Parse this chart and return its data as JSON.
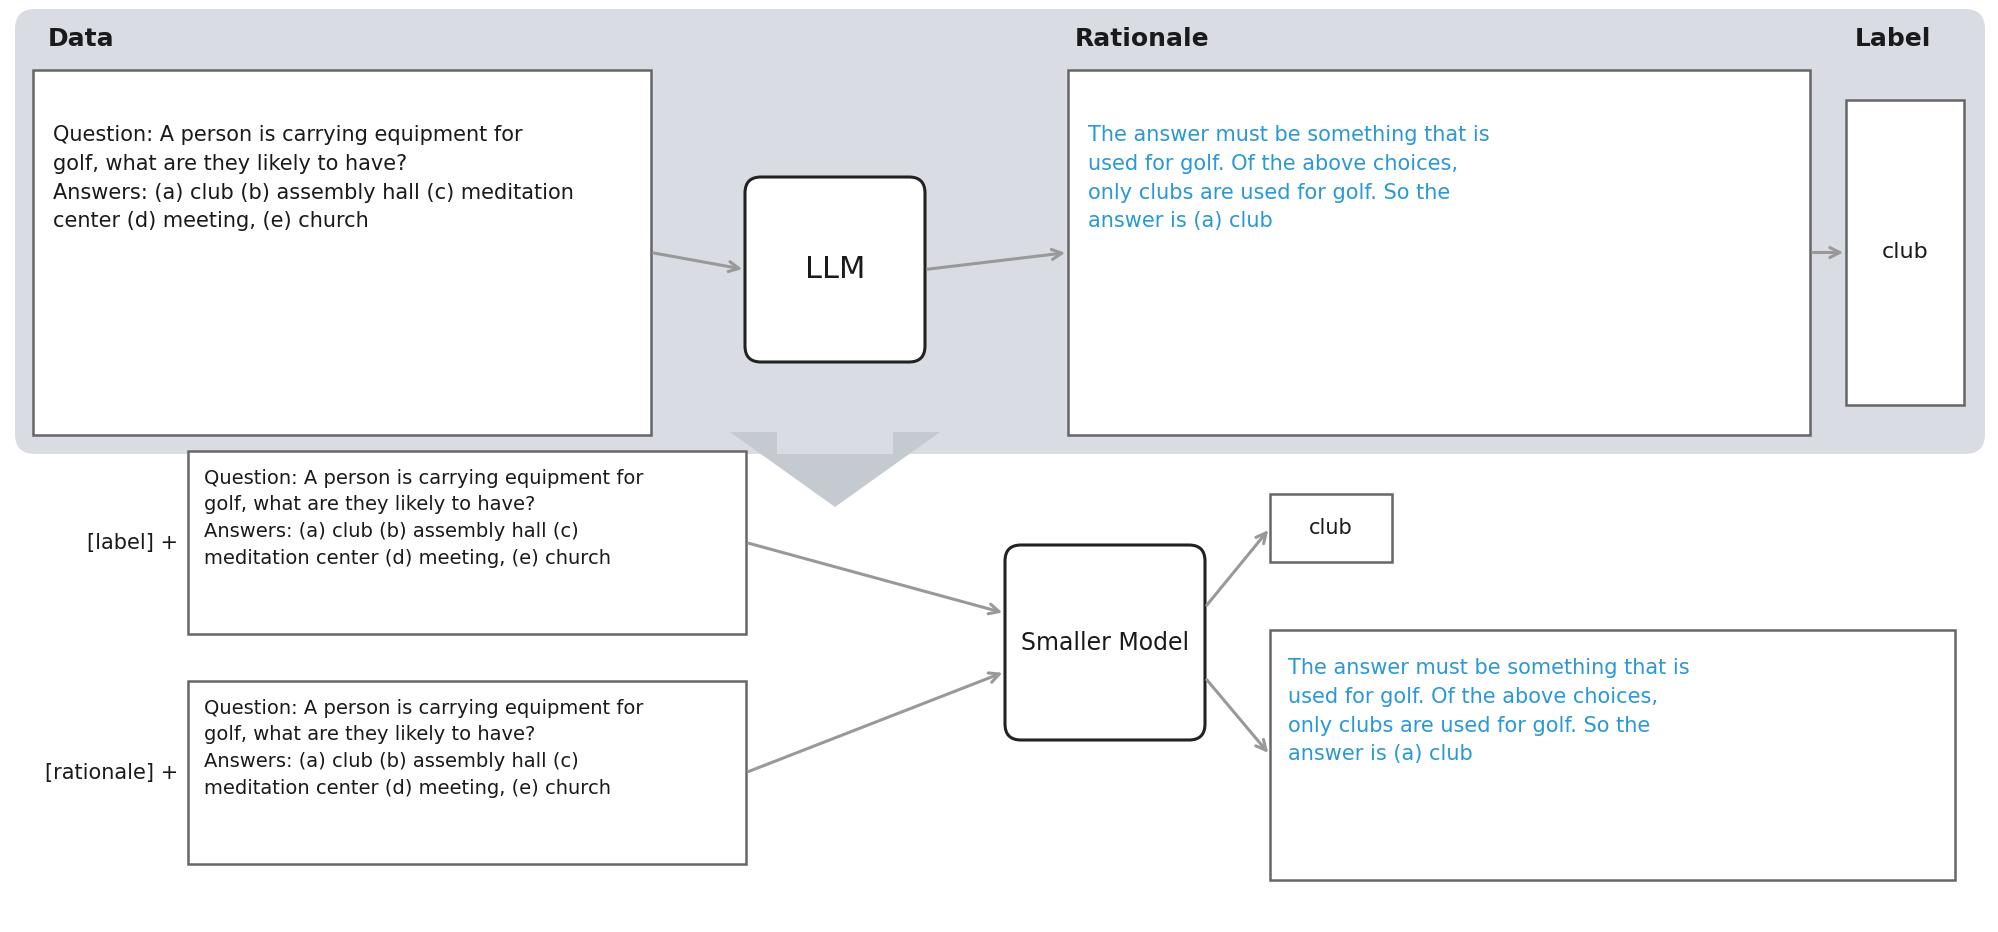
{
  "bg_top": "#d9dde3",
  "bg_white": "#ffffff",
  "text_black": "#1a1a1a",
  "text_blue": "#2B98D6",
  "arrow_gray": "#999999",
  "border_gray": "#666666",
  "border_dark": "#222222",
  "question_text_top": "Question: A person is carrying equipment for\ngolf, what are they likely to have?\nAnswers: (a) club (b) assembly hall (c) meditation\ncenter (d) meeting, (e) church",
  "question_text_bot": "Question: A person is carrying equipment for\ngolf, what are they likely to have?\nAnswers: (a) club (b) assembly hall (c)\nmeditation center (d) meeting, (e) church",
  "rationale_text": "The answer must be something that is\nused for golf. Of the above choices,\nonly clubs are used for golf. So the\nanswer is (a) club",
  "label_text": "club",
  "llm_text": "LLM",
  "smaller_model_text": "Smaller Model",
  "data_header": "Data",
  "rationale_header": "Rationale",
  "label_header": "Label",
  "label_prefix": "[label] +",
  "rationale_prefix": "[rationale] +"
}
